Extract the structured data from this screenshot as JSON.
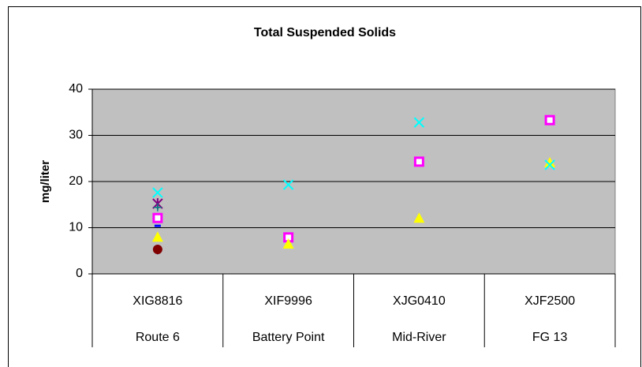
{
  "chart_data": {
    "type": "scatter",
    "title": "Total Suspended Solids",
    "y_label": "mg/liter",
    "categories": [
      "XIG8816",
      "XIF9996",
      "XJG0410",
      "XJF2500"
    ],
    "sites": [
      "Route 6",
      "Battery Point",
      "Mid-River",
      "FG 13"
    ],
    "ylim": [
      0,
      40
    ],
    "yticks": [
      0,
      10,
      20,
      30,
      40
    ],
    "grid": true,
    "series": [
      {
        "marker": "square",
        "color": "#ff00ff",
        "values": [
          12.1,
          7.9,
          24.3,
          33.3
        ]
      },
      {
        "marker": "triangle",
        "color": "#ffff00",
        "values": [
          8,
          6.5,
          12.1,
          24.1
        ]
      },
      {
        "marker": "x",
        "color": "#00ffff",
        "values": [
          17.6,
          19.3,
          32.8,
          23.6
        ]
      },
      {
        "marker": "star",
        "color": "#800080",
        "values": [
          15.2,
          null,
          null,
          null
        ]
      },
      {
        "marker": "plus",
        "color": "#008080",
        "values": [
          14.4,
          null,
          null,
          null
        ]
      },
      {
        "marker": "dash",
        "color": "#0000ff",
        "values": [
          10.4,
          null,
          null,
          null
        ]
      },
      {
        "marker": "diamond",
        "color": "#000080",
        "values": [
          5.2,
          null,
          null,
          null
        ]
      },
      {
        "marker": "circle",
        "color": "#800000",
        "values": [
          5.3,
          null,
          null,
          null
        ]
      }
    ]
  }
}
